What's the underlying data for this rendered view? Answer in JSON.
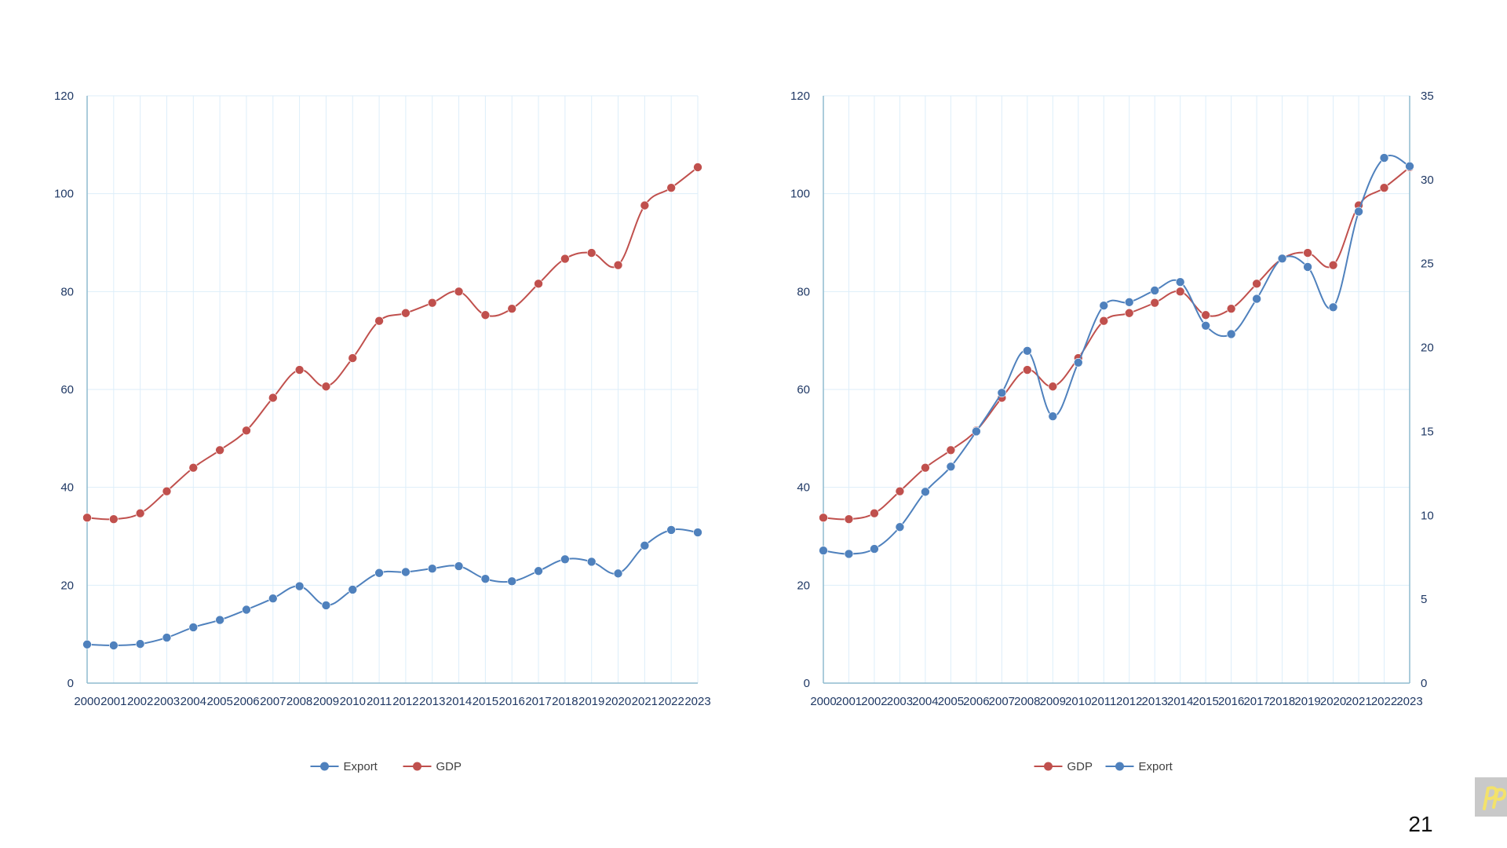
{
  "page": {
    "number": "21"
  },
  "colors": {
    "export": "#4f81bd",
    "gdp": "#c0504d",
    "grid": "#ddeefa",
    "axis": "#8fbccf",
    "tick_text": "#1f3864",
    "logo_mark": "#f3e26b"
  },
  "icons": {
    "logo": "brand-logo-icon"
  },
  "chart_data": [
    {
      "type": "line",
      "title": "",
      "xlabel": "",
      "ylabel": "",
      "categories": [
        "2000",
        "2001",
        "2002",
        "2003",
        "2004",
        "2005",
        "2006",
        "2007",
        "2008",
        "2009",
        "2010",
        "2011",
        "2012",
        "2013",
        "2014",
        "2015",
        "2016",
        "2017",
        "2018",
        "2019",
        "2020",
        "2021",
        "2022",
        "2023"
      ],
      "ylim": [
        0,
        120
      ],
      "yticks": [
        0,
        20,
        40,
        60,
        80,
        100,
        120
      ],
      "grid": true,
      "legend": "bottom",
      "series": [
        {
          "name": "Export",
          "axis": "left",
          "color": "#4f81bd",
          "values": [
            7.9,
            7.7,
            8.0,
            9.3,
            11.4,
            12.9,
            15.0,
            17.3,
            19.8,
            15.9,
            19.1,
            22.5,
            22.7,
            23.4,
            23.9,
            21.3,
            20.8,
            22.9,
            25.3,
            24.8,
            22.4,
            28.1,
            31.3,
            30.8
          ]
        },
        {
          "name": "GDP",
          "axis": "left",
          "color": "#c0504d",
          "values": [
            33.8,
            33.5,
            34.7,
            39.2,
            44.0,
            47.6,
            51.6,
            58.3,
            64.0,
            60.6,
            66.4,
            74.0,
            75.6,
            77.7,
            80.0,
            75.2,
            76.5,
            81.6,
            86.7,
            87.9,
            85.4,
            97.6,
            101.2,
            105.4
          ]
        }
      ]
    },
    {
      "type": "line",
      "title": "",
      "xlabel": "",
      "ylabel": "",
      "categories": [
        "2000",
        "2001",
        "2002",
        "2003",
        "2004",
        "2005",
        "2006",
        "2007",
        "2008",
        "2009",
        "2010",
        "2011",
        "2012",
        "2013",
        "2014",
        "2015",
        "2016",
        "2017",
        "2018",
        "2019",
        "2020",
        "2021",
        "2022",
        "2023"
      ],
      "ylim": [
        0,
        120
      ],
      "yticks": [
        0,
        20,
        40,
        60,
        80,
        100,
        120
      ],
      "y2lim": [
        0,
        35
      ],
      "y2ticks": [
        0,
        5,
        10,
        15,
        20,
        25,
        30,
        35
      ],
      "grid": true,
      "legend": "bottom",
      "series": [
        {
          "name": "GDP",
          "axis": "left",
          "color": "#c0504d",
          "values": [
            33.8,
            33.5,
            34.7,
            39.2,
            44.0,
            47.6,
            51.6,
            58.3,
            64.0,
            60.6,
            66.4,
            74.0,
            75.6,
            77.7,
            80.0,
            75.2,
            76.5,
            81.6,
            86.7,
            87.9,
            85.4,
            97.6,
            101.2,
            105.4
          ]
        },
        {
          "name": "Export",
          "axis": "right",
          "color": "#4f81bd",
          "values": [
            7.9,
            7.7,
            8.0,
            9.3,
            11.4,
            12.9,
            15.0,
            17.3,
            19.8,
            15.9,
            19.1,
            22.5,
            22.7,
            23.4,
            23.9,
            21.3,
            20.8,
            22.9,
            25.3,
            24.8,
            22.4,
            28.1,
            31.3,
            30.8
          ]
        }
      ]
    }
  ]
}
